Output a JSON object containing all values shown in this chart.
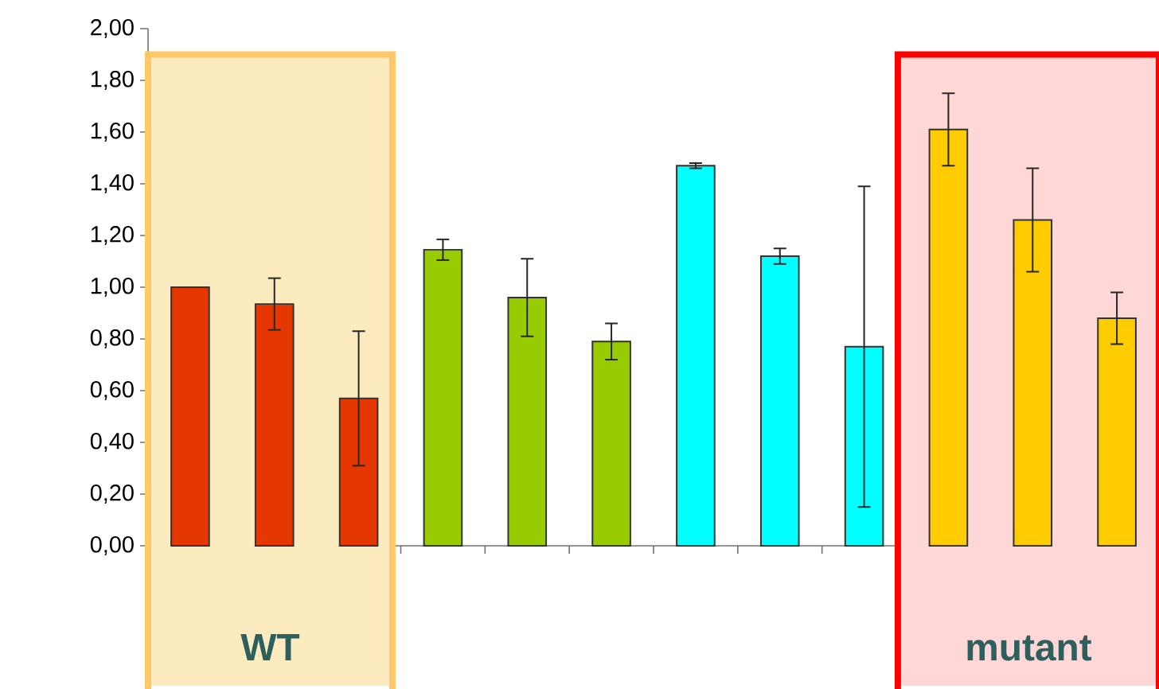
{
  "chart_data": {
    "type": "bar",
    "categories": [
      null,
      null,
      null,
      null,
      null,
      null,
      null,
      null,
      null,
      null,
      null,
      null
    ],
    "values": [
      1.0,
      0.935,
      0.57,
      1.145,
      0.96,
      0.79,
      1.47,
      1.12,
      0.77,
      1.61,
      1.26,
      0.88
    ],
    "errors": [
      null,
      0.1,
      0.26,
      0.04,
      0.15,
      0.07,
      0.01,
      0.03,
      0.62,
      0.14,
      0.2,
      0.1
    ],
    "colors": [
      "#e53800",
      "#e53800",
      "#e53800",
      "#99cc00",
      "#99cc00",
      "#99cc00",
      "#00ffff",
      "#00ffff",
      "#00ffff",
      "#ffcc00",
      "#ffcc00",
      "#ffcc00"
    ],
    "ylim": [
      0,
      2
    ],
    "yticks": [
      {
        "value": 0,
        "label": "0,00"
      },
      {
        "value": 0.2,
        "label": "0,20"
      },
      {
        "value": 0.4,
        "label": "0,40"
      },
      {
        "value": 0.6,
        "label": "0,60"
      },
      {
        "value": 0.8,
        "label": "0,80"
      },
      {
        "value": 1.0,
        "label": "1,00"
      },
      {
        "value": 1.2,
        "label": "1,20"
      },
      {
        "value": 1.4,
        "label": "1,40"
      },
      {
        "value": 1.6,
        "label": "1,60"
      },
      {
        "value": 1.8,
        "label": "1,80"
      },
      {
        "value": 2.0,
        "label": "2,00"
      }
    ],
    "annotations": [
      "WT",
      "mutant"
    ],
    "grid": false
  }
}
